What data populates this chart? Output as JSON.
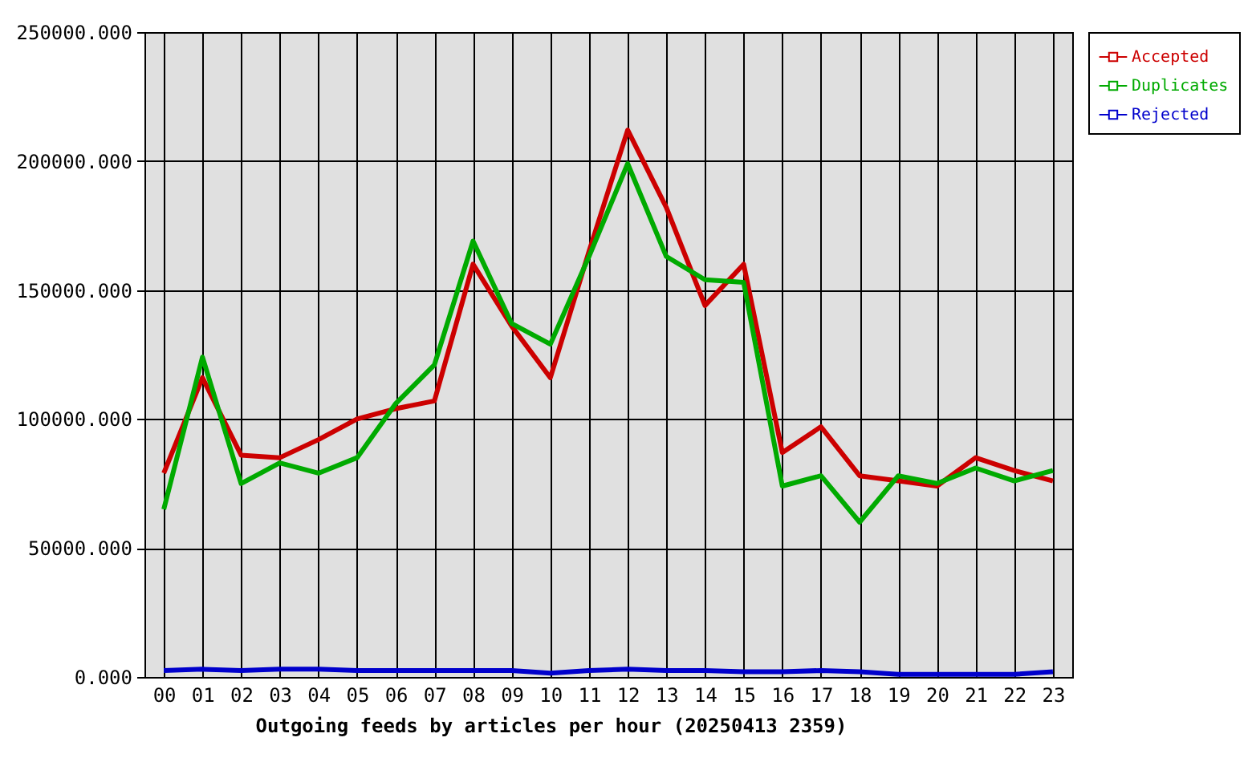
{
  "chart_data": {
    "type": "line",
    "xlabel": "Outgoing feeds by articles per hour (20250413 2359)",
    "categories": [
      "00",
      "01",
      "02",
      "03",
      "04",
      "05",
      "06",
      "07",
      "08",
      "09",
      "10",
      "11",
      "12",
      "13",
      "14",
      "15",
      "16",
      "17",
      "18",
      "19",
      "20",
      "21",
      "22",
      "23"
    ],
    "series": [
      {
        "name": "Accepted",
        "color": "#cc0000",
        "values": [
          79000,
          116000,
          86000,
          85000,
          92000,
          100000,
          104000,
          107000,
          160000,
          136000,
          116000,
          165000,
          212000,
          182000,
          144000,
          160000,
          87000,
          97000,
          78000,
          76000,
          74000,
          85000,
          80000,
          76000
        ]
      },
      {
        "name": "Duplicates",
        "color": "#00aa00",
        "values": [
          65000,
          124000,
          75000,
          83000,
          79000,
          85000,
          106000,
          121000,
          169000,
          137000,
          129000,
          163000,
          199000,
          163000,
          154000,
          153000,
          74000,
          78000,
          60000,
          78000,
          75000,
          81000,
          76000,
          80000
        ]
      },
      {
        "name": "Rejected",
        "color": "#0000cc",
        "values": [
          2500,
          3000,
          2500,
          3000,
          3000,
          2500,
          2500,
          2500,
          2500,
          2500,
          1500,
          2500,
          3000,
          2500,
          2500,
          2000,
          2000,
          2500,
          2000,
          1000,
          1000,
          1000,
          1000,
          2000
        ]
      }
    ],
    "ylim": [
      0,
      250000
    ],
    "yticks": [
      {
        "value": 0,
        "label": "0.000"
      },
      {
        "value": 50000,
        "label": "50000.000"
      },
      {
        "value": 100000,
        "label": "100000.000"
      },
      {
        "value": 150000,
        "label": "150000.000"
      },
      {
        "value": 200000,
        "label": "200000.000"
      },
      {
        "value": 250000,
        "label": "250000.000"
      }
    ],
    "grid": true,
    "legend": "top right",
    "line_style": "solid"
  }
}
